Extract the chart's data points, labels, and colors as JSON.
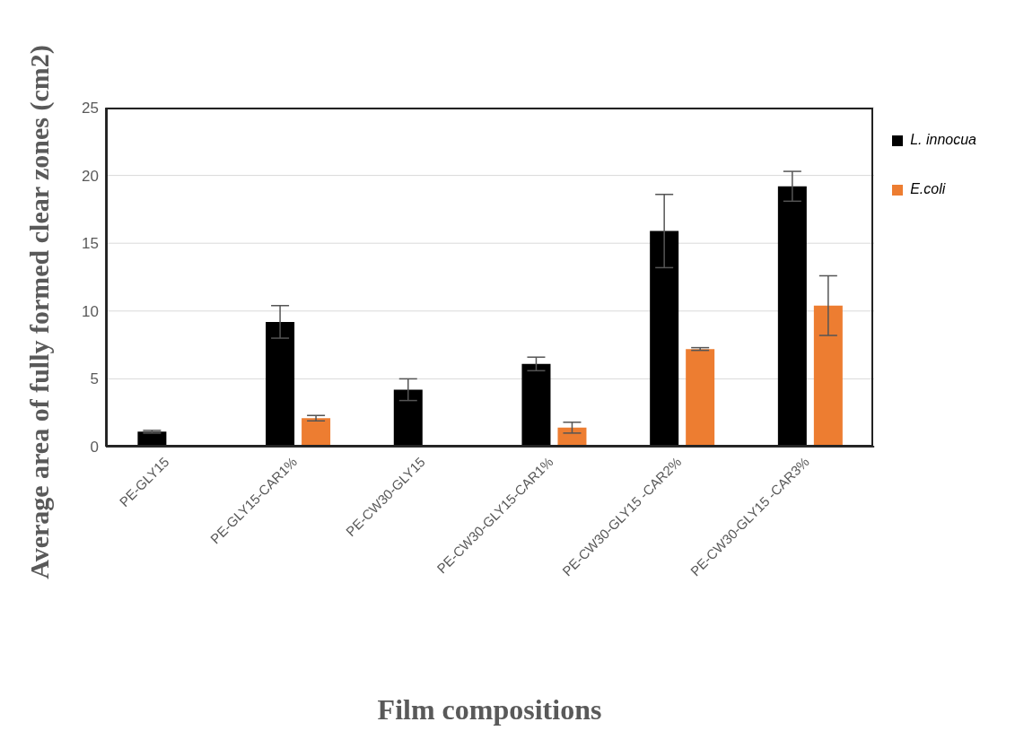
{
  "chart_data": {
    "type": "bar",
    "xlabel": "Film compositions",
    "ylabel": "Average area of fully formed clear zones (cm2)",
    "categories": [
      "PE-GLY15",
      "PE-GLY15-CAR1%",
      "PE-CW30-GLY15",
      "PE-CW30-GLY15-CAR1%",
      "PE-CW30-GLY15 -CAR2%",
      "PE-CW30-GLY15 -CAR3%"
    ],
    "series": [
      {
        "name": "L. innocua",
        "color": "#000000",
        "values": [
          1.1,
          9.2,
          4.2,
          6.1,
          15.9,
          19.2
        ],
        "errors": [
          0.1,
          1.2,
          0.8,
          0.5,
          2.7,
          1.1
        ]
      },
      {
        "name": "E.coli",
        "color": "#ed7d31",
        "values": [
          null,
          2.1,
          null,
          1.4,
          7.2,
          10.4
        ],
        "errors": [
          null,
          0.2,
          null,
          0.4,
          0.1,
          2.2
        ]
      }
    ],
    "ylim": [
      0,
      25
    ],
    "yticks": [
      0,
      5,
      10,
      15,
      20,
      25
    ],
    "grid": "y",
    "legend": "top right"
  }
}
